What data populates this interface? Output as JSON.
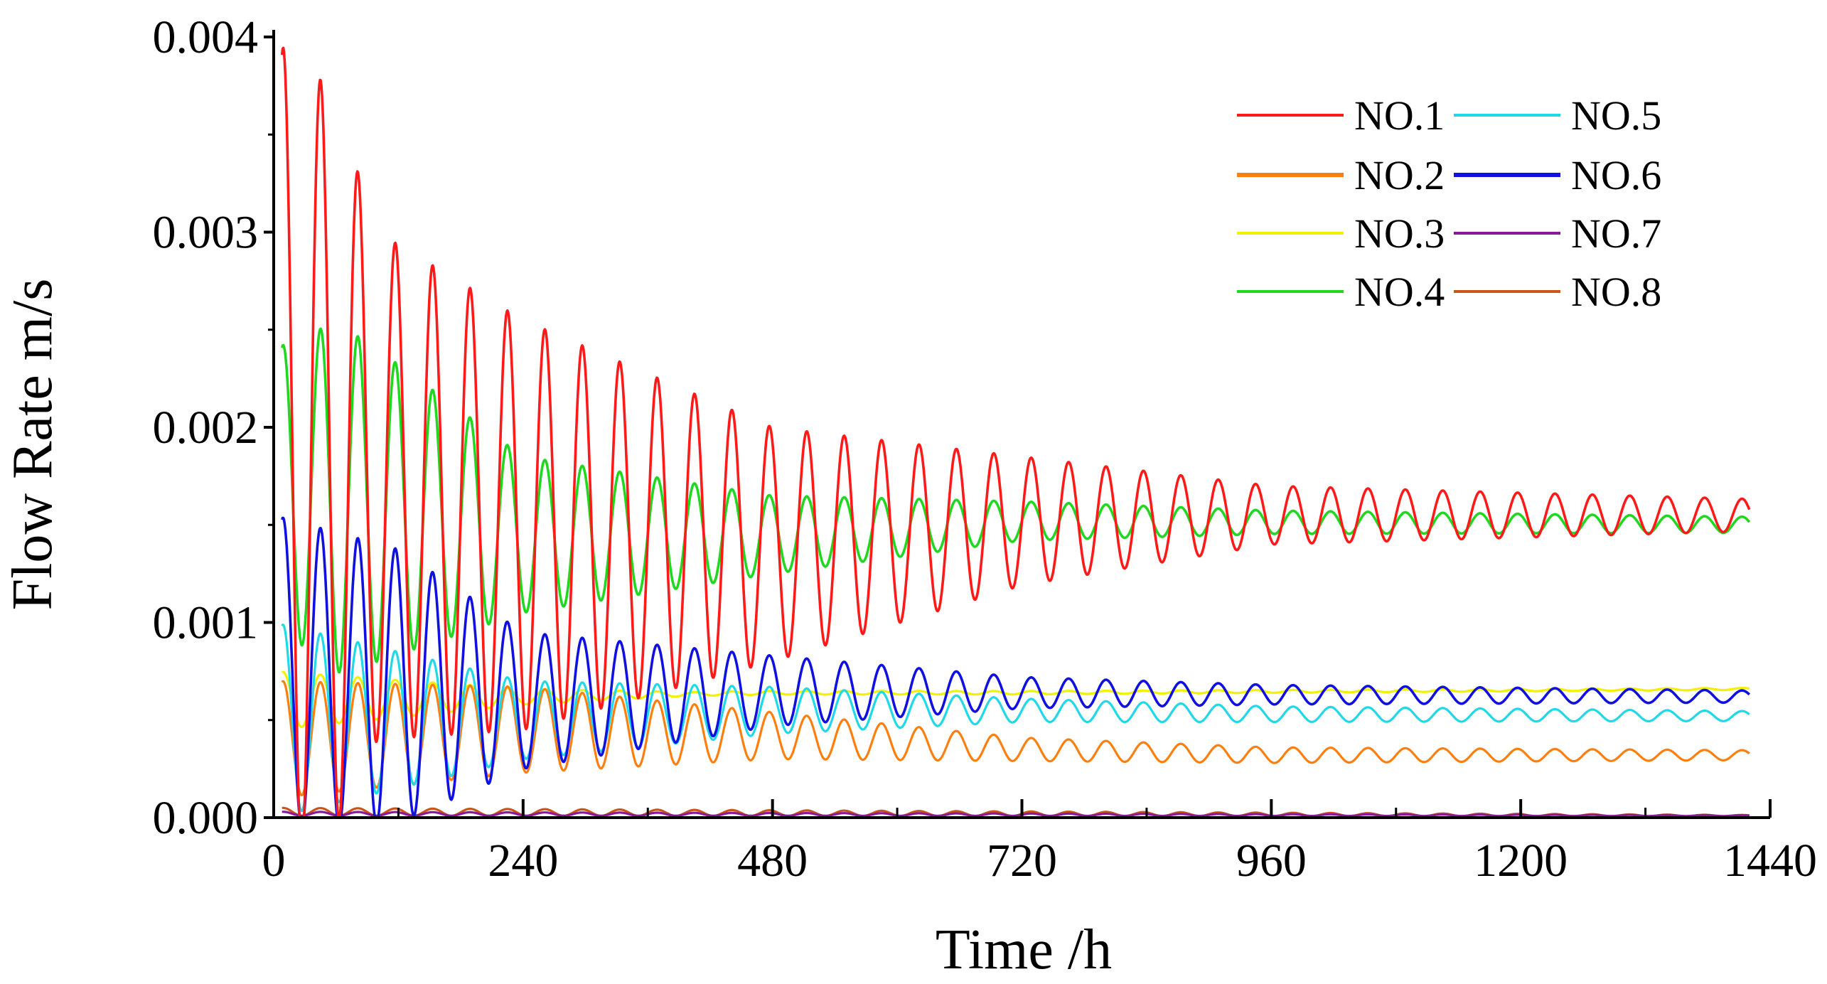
{
  "chart_data": {
    "type": "line",
    "title": "",
    "xlabel": "Time /h",
    "ylabel": "Flow Rate m/s",
    "xlim": [
      0,
      1440
    ],
    "ylim": [
      0,
      0.004
    ],
    "grid": false,
    "legend_position": "top-right",
    "x_ticks": [
      "0",
      "240",
      "480",
      "720",
      "960",
      "1200",
      "1440"
    ],
    "y_ticks": [
      "0.000",
      "0.001",
      "0.002",
      "0.003",
      "0.004"
    ],
    "series": [
      {
        "name": "NO.1",
        "color": "#ff1a1a",
        "period_h": 36,
        "pt_start": 8,
        "pt_end": 1420,
        "base": [
          [
            0,
            0.0018
          ],
          [
            20,
            0.0019
          ],
          [
            100,
            0.0017
          ],
          [
            240,
            0.0015
          ],
          [
            480,
            0.0014
          ],
          [
            720,
            0.00152
          ],
          [
            960,
            0.00155
          ],
          [
            1440,
            0.00155
          ]
        ],
        "amp": [
          [
            0,
            0.0021
          ],
          [
            20,
            0.0021
          ],
          [
            60,
            0.00185
          ],
          [
            100,
            0.0013
          ],
          [
            240,
            0.00105
          ],
          [
            320,
            0.0009
          ],
          [
            480,
            0.0006
          ],
          [
            720,
            0.00033
          ],
          [
            960,
            0.00015
          ],
          [
            1440,
            8e-05
          ]
        ]
      },
      {
        "name": "NO.2",
        "color": "#ff7f0e",
        "period_h": 36,
        "pt_start": 8,
        "pt_end": 1420,
        "base": [
          [
            0,
            0.0004
          ],
          [
            240,
            0.00045
          ],
          [
            480,
            0.00042
          ],
          [
            720,
            0.00035
          ],
          [
            960,
            0.00032
          ],
          [
            1440,
            0.00032
          ]
        ],
        "amp": [
          [
            0,
            0.0003
          ],
          [
            240,
            0.00022
          ],
          [
            480,
            0.00012
          ],
          [
            720,
            6e-05
          ],
          [
            960,
            4e-05
          ],
          [
            1440,
            2.5e-05
          ]
        ]
      },
      {
        "name": "NO.3",
        "color": "#f2f200",
        "period_h": 36,
        "pt_start": 8,
        "pt_end": 1420,
        "base": [
          [
            0,
            0.0006
          ],
          [
            240,
            0.00062
          ],
          [
            480,
            0.00064
          ],
          [
            720,
            0.00064
          ],
          [
            1440,
            0.00066
          ]
        ],
        "amp": [
          [
            0,
            0.00015
          ],
          [
            240,
            4e-05
          ],
          [
            400,
            1e-05
          ],
          [
            1440,
            5e-06
          ]
        ]
      },
      {
        "name": "NO.4",
        "color": "#1fd81f",
        "period_h": 36,
        "pt_start": 8,
        "pt_end": 1420,
        "base": [
          [
            0,
            0.0017
          ],
          [
            100,
            0.0016
          ],
          [
            240,
            0.00145
          ],
          [
            480,
            0.00145
          ],
          [
            720,
            0.00152
          ],
          [
            1440,
            0.0015
          ]
        ],
        "amp": [
          [
            0,
            0.0007
          ],
          [
            60,
            0.0009
          ],
          [
            100,
            0.0008
          ],
          [
            240,
            0.0004
          ],
          [
            480,
            0.0002
          ],
          [
            720,
            0.0001
          ],
          [
            960,
            6e-05
          ],
          [
            1440,
            4e-05
          ]
        ]
      },
      {
        "name": "NO.5",
        "color": "#1fd8e8",
        "period_h": 36,
        "pt_start": 8,
        "pt_end": 1420,
        "base": [
          [
            0,
            0.0005
          ],
          [
            240,
            0.0005
          ],
          [
            480,
            0.00055
          ],
          [
            720,
            0.00055
          ],
          [
            960,
            0.00053
          ],
          [
            1440,
            0.00052
          ]
        ],
        "amp": [
          [
            0,
            0.0005
          ],
          [
            240,
            0.0002
          ],
          [
            480,
            0.00012
          ],
          [
            720,
            6e-05
          ],
          [
            960,
            4e-05
          ],
          [
            1440,
            2.5e-05
          ]
        ]
      },
      {
        "name": "NO.6",
        "color": "#1010e0",
        "period_h": 36,
        "pt_start": 8,
        "pt_end": 1420,
        "base": [
          [
            0,
            0.00075
          ],
          [
            240,
            0.0006
          ],
          [
            480,
            0.00065
          ],
          [
            720,
            0.00064
          ],
          [
            960,
            0.00063
          ],
          [
            1440,
            0.00062
          ]
        ],
        "amp": [
          [
            0,
            0.0008
          ],
          [
            120,
            0.0007
          ],
          [
            240,
            0.00035
          ],
          [
            480,
            0.00018
          ],
          [
            720,
            8e-05
          ],
          [
            960,
            5e-05
          ],
          [
            1440,
            3e-05
          ]
        ]
      },
      {
        "name": "NO.7",
        "color": "#8b1a9a",
        "period_h": 36,
        "pt_start": 8,
        "pt_end": 1420,
        "base": [
          [
            0,
            2e-05
          ],
          [
            1440,
            1e-05
          ]
        ],
        "amp": [
          [
            0,
            1e-05
          ],
          [
            1440,
            2e-06
          ]
        ]
      },
      {
        "name": "NO.8",
        "color": "#c8561a",
        "period_h": 36,
        "pt_start": 8,
        "pt_end": 1420,
        "base": [
          [
            0,
            3e-05
          ],
          [
            1440,
            1e-05
          ]
        ],
        "amp": [
          [
            0,
            2e-05
          ],
          [
            1440,
            3e-06
          ]
        ]
      }
    ]
  }
}
